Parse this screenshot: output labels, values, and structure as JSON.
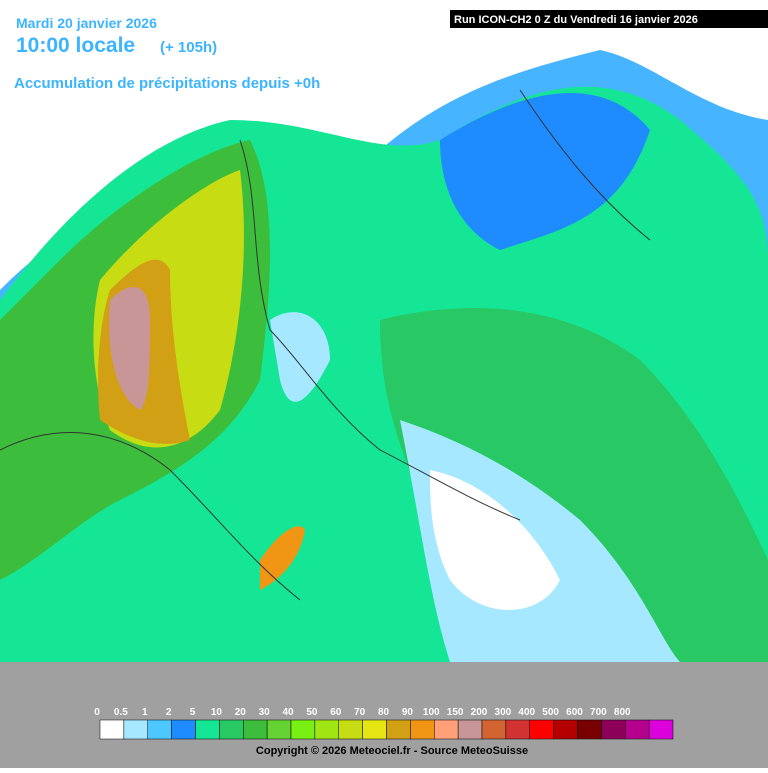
{
  "header": {
    "date": "Mardi 20 janvier 2026",
    "time": "10:00 locale",
    "lead": "(+ 105h)",
    "subtitle": "Accumulation de précipitations depuis +0h",
    "run": "Run ICON-CH2 0 Z du Vendredi 16 janvier 2026"
  },
  "legend": {
    "ticks": [
      0,
      0.5,
      1,
      2,
      5,
      10,
      20,
      30,
      40,
      50,
      60,
      70,
      80,
      90,
      100,
      150,
      200,
      300,
      400,
      500,
      600,
      700,
      800
    ],
    "colors": [
      "#ffffff",
      "#a5e8ff",
      "#4cc8ff",
      "#1e8cff",
      "#14e696",
      "#28c864",
      "#3cbe3c",
      "#64d232",
      "#78f014",
      "#a0e614",
      "#c8dc14",
      "#e6e614",
      "#d2a014",
      "#f09614",
      "#ffa078",
      "#c89696",
      "#d26432",
      "#d23232",
      "#ff0000",
      "#b40000",
      "#780000",
      "#8c005a",
      "#b4008c",
      "#dc00dc"
    ]
  },
  "footer": {
    "copyright": "Copyright © 2026 Meteociel.fr - Source MeteoSuisse"
  }
}
